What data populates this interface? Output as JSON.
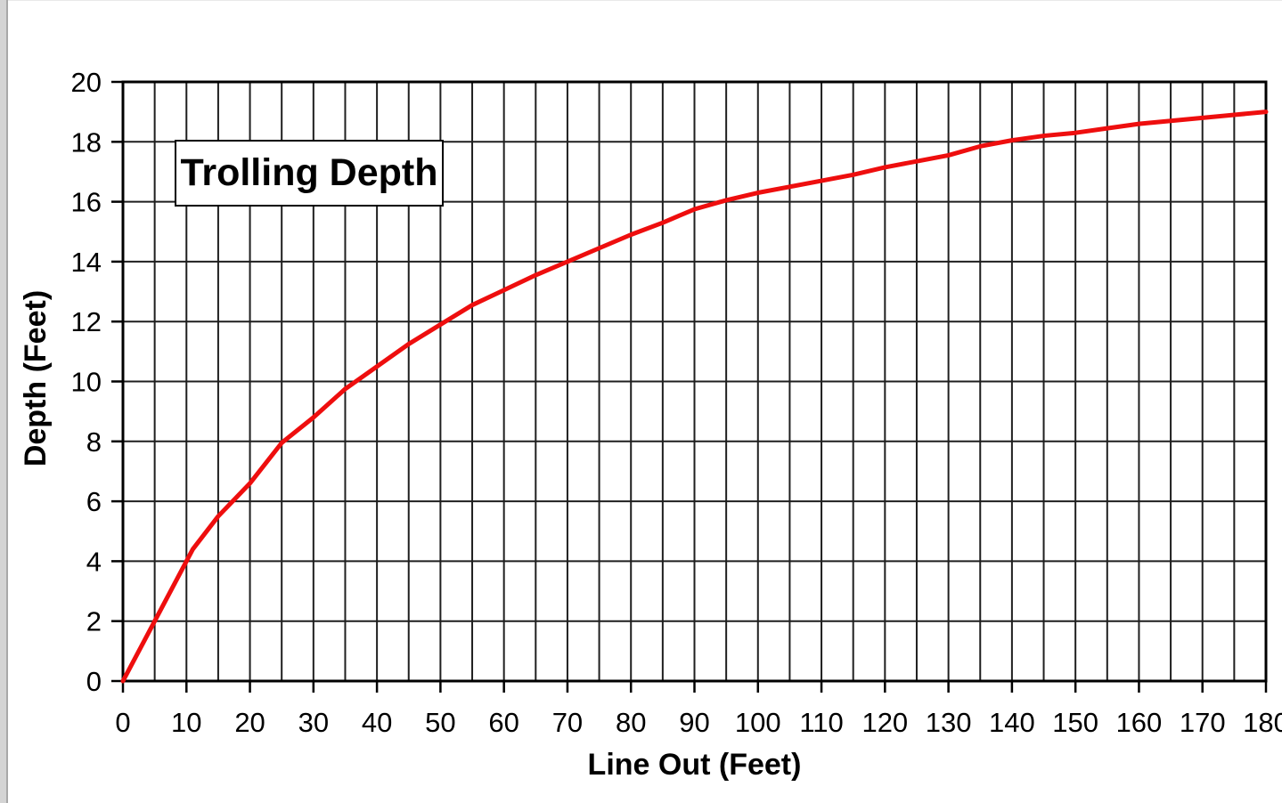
{
  "page": {
    "background_color": "#ffffff",
    "left_edge_strip_color": "#d4d4d4",
    "left_edge_line_color": "#a8a8a8"
  },
  "chart_data": {
    "type": "line",
    "title": "Trolling Depth",
    "xlabel": "Line Out (Feet)",
    "ylabel": "Depth (Feet)",
    "xlim": [
      0,
      180
    ],
    "ylim": [
      0,
      20
    ],
    "x_major_tick_step": 10,
    "x_minor_grid_step": 5,
    "y_major_tick_step": 2,
    "x_tick_labels": [
      "0",
      "10",
      "20",
      "30",
      "40",
      "50",
      "60",
      "70",
      "80",
      "90",
      "100",
      "110",
      "120",
      "130",
      "140",
      "150",
      "160",
      "170",
      "180"
    ],
    "y_tick_labels": [
      "0",
      "2",
      "4",
      "6",
      "8",
      "10",
      "12",
      "14",
      "16",
      "18",
      "20"
    ],
    "grid": "on",
    "legend_position": "none",
    "grid_color": "#1f1f1f",
    "frame_color": "#000000",
    "series": [
      {
        "name": "Trolling Depth",
        "color": "#ee0e0e",
        "x": [
          0,
          5,
          10,
          11,
          15,
          20,
          25,
          30,
          35,
          40,
          45,
          50,
          55,
          60,
          65,
          70,
          75,
          80,
          85,
          90,
          95,
          100,
          105,
          110,
          115,
          120,
          125,
          130,
          135,
          140,
          145,
          150,
          155,
          160,
          165,
          170,
          175,
          180
        ],
        "y": [
          0,
          2.0,
          4.0,
          4.4,
          5.5,
          6.6,
          7.95,
          8.8,
          9.75,
          10.5,
          11.25,
          11.9,
          12.55,
          13.05,
          13.55,
          14.0,
          14.45,
          14.9,
          15.3,
          15.75,
          16.05,
          16.3,
          16.5,
          16.7,
          16.9,
          17.15,
          17.35,
          17.55,
          17.85,
          18.05,
          18.2,
          18.3,
          18.45,
          18.6,
          18.7,
          18.8,
          18.9,
          19.0
        ]
      }
    ]
  }
}
